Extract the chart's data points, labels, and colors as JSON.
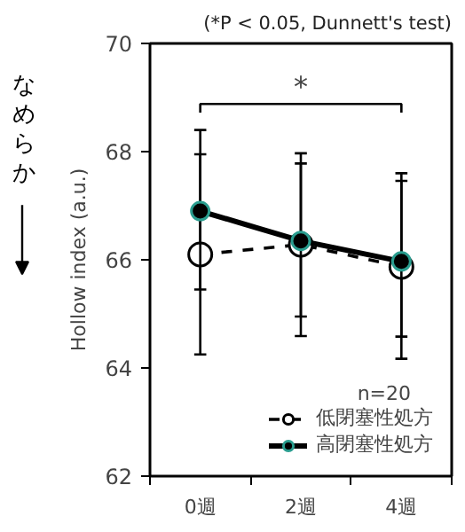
{
  "chart_data": {
    "type": "line",
    "title": "(*P < 0.05, Dunnett's test)",
    "ylabel": "Hollow index (a.u.)",
    "categories": [
      "0週",
      "2週",
      "4週"
    ],
    "series": [
      {
        "name": "低閉塞性処方",
        "color": "#ffffff",
        "line_style": "dashed",
        "values": [
          66.1,
          66.28,
          65.87
        ],
        "errors": [
          [
            64.25,
            67.95
          ],
          [
            64.59,
            67.97
          ],
          [
            64.17,
            67.6
          ]
        ]
      },
      {
        "name": "高閉塞性処方",
        "color": "#000000",
        "line_style": "solid",
        "values": [
          66.9,
          66.35,
          65.97
        ],
        "errors": [
          [
            65.45,
            68.4
          ],
          [
            64.95,
            67.78
          ],
          [
            64.58,
            67.46
          ]
        ]
      }
    ],
    "ylim": [
      62,
      70
    ],
    "yticks": [
      62,
      64,
      66,
      68,
      70
    ],
    "grid": false,
    "legend": "bottom right",
    "marker": "circle",
    "annotations": [
      "*",
      "n=20",
      "なめらか"
    ]
  }
}
